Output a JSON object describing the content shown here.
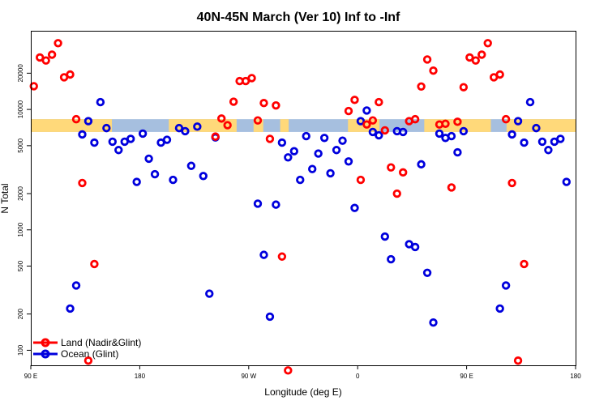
{
  "chart_data": {
    "type": "scatter",
    "title": "40N-45N March (Ver 10)   Inf to -Inf",
    "xlabel": "Longitude (deg E)",
    "ylabel": "N Total",
    "y_scale": "log",
    "x_ticks": [
      {
        "value": 90,
        "label": "90 E"
      },
      {
        "value": 180,
        "label": "180"
      },
      {
        "value": 270,
        "label": "90 W"
      },
      {
        "value": 360,
        "label": "0"
      },
      {
        "value": 450,
        "label": "90 E"
      },
      {
        "value": 540,
        "label": "180"
      }
    ],
    "y_ticks": [
      {
        "value": 100,
        "label": "100"
      },
      {
        "value": 200,
        "label": "200"
      },
      {
        "value": 500,
        "label": "500"
      },
      {
        "value": 1000,
        "label": "1000"
      },
      {
        "value": 2000,
        "label": "2000"
      },
      {
        "value": 5000,
        "label": "5000"
      },
      {
        "value": 10000,
        "label": "10000"
      },
      {
        "value": 20000,
        "label": "20000"
      }
    ],
    "xlim": [
      90,
      540
    ],
    "ylim": [
      75,
      45000
    ],
    "band": {
      "y_range": [
        6500,
        8300
      ],
      "land_color": "#ffd97a",
      "ocean_color": "#a6bfdf",
      "land_segments": [
        [
          90,
          157
        ],
        [
          204,
          260
        ],
        [
          274,
          282
        ],
        [
          296,
          303
        ],
        [
          352,
          378
        ],
        [
          415,
          470
        ],
        [
          483,
          540
        ]
      ]
    },
    "legend": {
      "position": "bottom-left"
    },
    "series": [
      {
        "name": "Land (Nadir&Glint)",
        "color": "#ff0000",
        "points": [
          [
            92.5,
            15600
          ],
          [
            97.5,
            27000
          ],
          [
            102.5,
            25500
          ],
          [
            107.5,
            28500
          ],
          [
            112.5,
            35500
          ],
          [
            117.5,
            18500
          ],
          [
            122.5,
            19500
          ],
          [
            127.5,
            8300
          ],
          [
            132.5,
            2450
          ],
          [
            137.5,
            82
          ],
          [
            142.5,
            520
          ],
          [
            242.5,
            5950
          ],
          [
            247.5,
            8400
          ],
          [
            252.5,
            7400
          ],
          [
            257.5,
            11600
          ],
          [
            262.5,
            17200
          ],
          [
            267.5,
            17200
          ],
          [
            272.5,
            18200
          ],
          [
            277.5,
            8100
          ],
          [
            282.5,
            11300
          ],
          [
            287.5,
            5700
          ],
          [
            292.5,
            10800
          ],
          [
            297.5,
            600
          ],
          [
            302.5,
            68
          ],
          [
            352.5,
            9700
          ],
          [
            357.5,
            12000
          ],
          [
            362.5,
            2600
          ],
          [
            367.5,
            7500
          ],
          [
            372.5,
            8100
          ],
          [
            377.5,
            11500
          ],
          [
            382.5,
            6700
          ],
          [
            387.5,
            3300
          ],
          [
            392.5,
            2000
          ],
          [
            397.5,
            3000
          ],
          [
            402.5,
            8000
          ],
          [
            407.5,
            8300
          ],
          [
            412.5,
            15500
          ],
          [
            417.5,
            26000
          ],
          [
            422.5,
            21000
          ],
          [
            427.5,
            7500
          ],
          [
            432.5,
            7600
          ],
          [
            437.5,
            2250
          ],
          [
            442.5,
            7900
          ],
          [
            447.5,
            15300
          ],
          [
            452.5,
            27000
          ],
          [
            457.5,
            25500
          ],
          [
            462.5,
            28500
          ],
          [
            467.5,
            35500
          ],
          [
            472.5,
            18500
          ],
          [
            477.5,
            19500
          ],
          [
            482.5,
            8300
          ],
          [
            487.5,
            2450
          ],
          [
            492.5,
            82
          ],
          [
            497.5,
            520
          ]
        ]
      },
      {
        "name": "Ocean (Glint)",
        "color": "#0000dd",
        "points": [
          [
            122.5,
            222
          ],
          [
            127.5,
            345
          ],
          [
            132.5,
            6200
          ],
          [
            137.5,
            8000
          ],
          [
            142.5,
            5300
          ],
          [
            147.5,
            11500
          ],
          [
            152.5,
            7000
          ],
          [
            157.5,
            5400
          ],
          [
            162.5,
            4600
          ],
          [
            167.5,
            5400
          ],
          [
            172.5,
            5700
          ],
          [
            177.5,
            2500
          ],
          [
            182.5,
            6300
          ],
          [
            187.5,
            3900
          ],
          [
            192.5,
            2900
          ],
          [
            197.5,
            5300
          ],
          [
            202.5,
            5600
          ],
          [
            207.5,
            2600
          ],
          [
            212.5,
            7000
          ],
          [
            217.5,
            6600
          ],
          [
            222.5,
            3400
          ],
          [
            227.5,
            7200
          ],
          [
            232.5,
            2800
          ],
          [
            237.5,
            295
          ],
          [
            242.5,
            5850
          ],
          [
            277.5,
            1650
          ],
          [
            282.5,
            620
          ],
          [
            287.5,
            190
          ],
          [
            292.5,
            1620
          ],
          [
            297.5,
            5300
          ],
          [
            302.5,
            4000
          ],
          [
            307.5,
            4500
          ],
          [
            312.5,
            2600
          ],
          [
            317.5,
            6000
          ],
          [
            322.5,
            3200
          ],
          [
            327.5,
            4300
          ],
          [
            332.5,
            5800
          ],
          [
            337.5,
            2950
          ],
          [
            342.5,
            4600
          ],
          [
            347.5,
            5500
          ],
          [
            352.5,
            3700
          ],
          [
            357.5,
            1520
          ],
          [
            362.5,
            8000
          ],
          [
            367.5,
            9800
          ],
          [
            372.5,
            6500
          ],
          [
            377.5,
            6100
          ],
          [
            382.5,
            880
          ],
          [
            387.5,
            570
          ],
          [
            392.5,
            6600
          ],
          [
            397.5,
            6500
          ],
          [
            402.5,
            760
          ],
          [
            407.5,
            720
          ],
          [
            412.5,
            3500
          ],
          [
            417.5,
            440
          ],
          [
            422.5,
            170
          ],
          [
            427.5,
            6300
          ],
          [
            432.5,
            5800
          ],
          [
            437.5,
            6000
          ],
          [
            442.5,
            4400
          ],
          [
            447.5,
            6600
          ],
          [
            477.5,
            222
          ],
          [
            482.5,
            345
          ],
          [
            487.5,
            6200
          ],
          [
            492.5,
            8000
          ],
          [
            497.5,
            5300
          ],
          [
            502.5,
            11500
          ],
          [
            507.5,
            7000
          ],
          [
            512.5,
            5400
          ],
          [
            517.5,
            4600
          ],
          [
            522.5,
            5400
          ],
          [
            527.5,
            5700
          ],
          [
            532.5,
            2500
          ]
        ]
      }
    ]
  }
}
